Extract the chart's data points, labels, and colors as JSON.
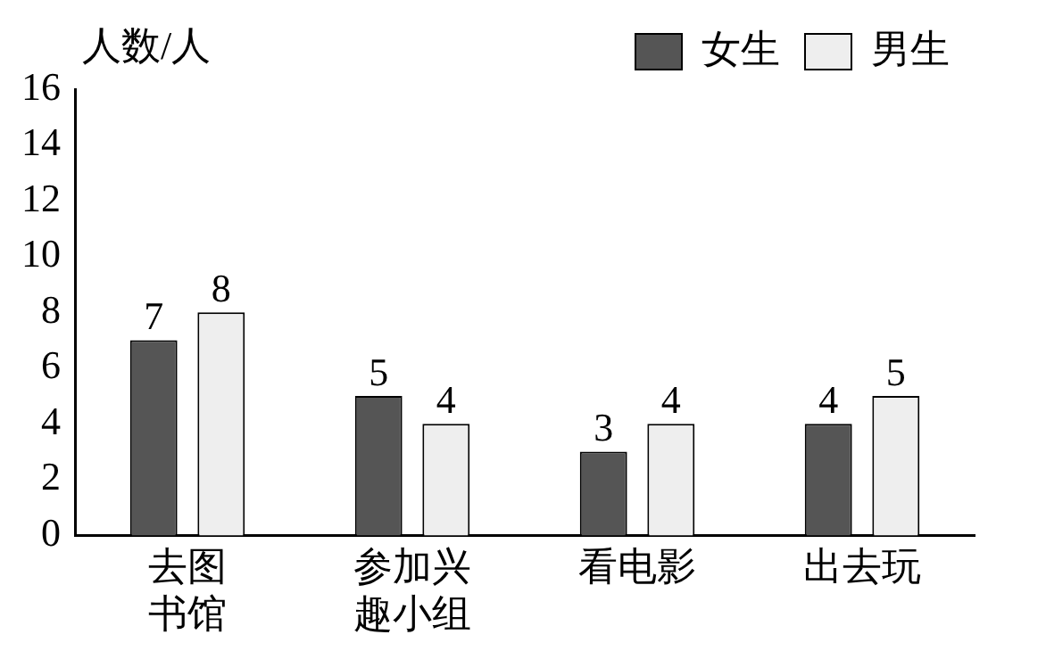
{
  "chart_data": {
    "type": "bar",
    "ylabel": "人数/人",
    "categories": [
      "去图书馆",
      "参加兴趣小组",
      "看电影",
      "出去玩"
    ],
    "series": [
      {
        "name": "女生",
        "color": "#555555",
        "values": [
          7,
          5,
          3,
          4
        ]
      },
      {
        "name": "男生",
        "color": "#eeeeee",
        "values": [
          8,
          4,
          4,
          5
        ]
      }
    ],
    "ylim": [
      0,
      16
    ],
    "yticks": [
      0,
      2,
      4,
      6,
      8,
      10,
      12,
      14,
      16
    ],
    "grid": false,
    "legend": "top right",
    "data_labels": true
  }
}
